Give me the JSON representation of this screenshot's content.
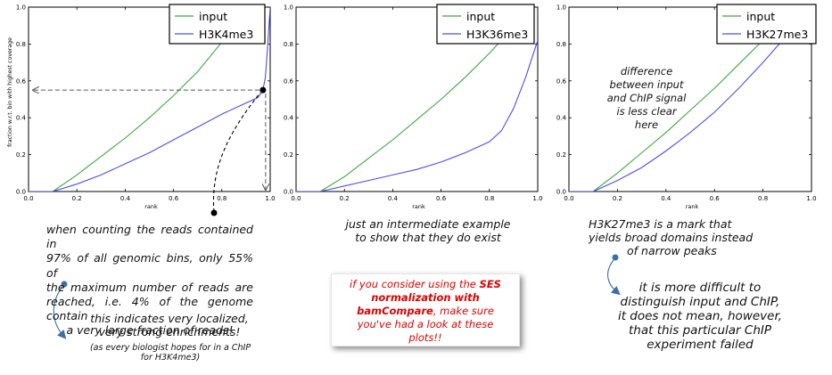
{
  "chart_data": [
    {
      "type": "line",
      "title": "",
      "xlabel": "rank",
      "ylabel": "fraction w.r.t. bin with highest coverage",
      "xlim": [
        0.0,
        1.0
      ],
      "ylim": [
        0.0,
        1.0
      ],
      "xticks": [
        "0.0",
        "0.2",
        "0.4",
        "0.6",
        "0.8",
        "1.0"
      ],
      "yticks": [
        "0.0",
        "0.2",
        "0.4",
        "0.6",
        "0.8",
        "1.0"
      ],
      "legend_position": "top-right",
      "grid": false,
      "series": [
        {
          "name": "input",
          "color": "#3ea83e",
          "x": [
            0.0,
            0.1,
            0.2,
            0.3,
            0.4,
            0.5,
            0.6,
            0.7,
            0.8,
            0.85
          ],
          "y": [
            0.0,
            0.0,
            0.09,
            0.19,
            0.29,
            0.4,
            0.52,
            0.65,
            0.81,
            0.9
          ]
        },
        {
          "name": "H3K4me3",
          "color": "#4d4df0",
          "x": [
            0.0,
            0.1,
            0.2,
            0.3,
            0.4,
            0.5,
            0.6,
            0.7,
            0.8,
            0.9,
            0.95,
            0.97,
            0.98,
            0.99,
            1.0
          ],
          "y": [
            0.0,
            0.0,
            0.04,
            0.09,
            0.15,
            0.21,
            0.28,
            0.35,
            0.42,
            0.48,
            0.51,
            0.55,
            0.62,
            0.8,
            1.0
          ]
        }
      ],
      "reference_point": {
        "x": 0.97,
        "y": 0.55
      }
    },
    {
      "type": "line",
      "title": "",
      "xlabel": "rank",
      "ylabel": "",
      "xlim": [
        0.0,
        1.0
      ],
      "ylim": [
        0.0,
        1.0
      ],
      "xticks": [
        "0.0",
        "0.2",
        "0.4",
        "0.6",
        "0.8",
        "1.0"
      ],
      "yticks": [
        "0.0",
        "0.2",
        "0.4",
        "0.6",
        "0.8",
        "1.0"
      ],
      "legend_position": "top-right",
      "grid": false,
      "series": [
        {
          "name": "input",
          "color": "#3ea83e",
          "x": [
            0.0,
            0.1,
            0.2,
            0.3,
            0.4,
            0.5,
            0.6,
            0.7,
            0.8,
            0.9,
            0.95
          ],
          "y": [
            0.0,
            0.0,
            0.08,
            0.18,
            0.28,
            0.39,
            0.5,
            0.62,
            0.75,
            0.89,
            0.97
          ]
        },
        {
          "name": "H3K36me3",
          "color": "#4d4df0",
          "x": [
            0.0,
            0.1,
            0.2,
            0.3,
            0.4,
            0.5,
            0.6,
            0.7,
            0.8,
            0.85,
            0.9,
            0.95,
            1.0
          ],
          "y": [
            0.0,
            0.0,
            0.03,
            0.06,
            0.09,
            0.12,
            0.16,
            0.21,
            0.27,
            0.33,
            0.45,
            0.62,
            0.82
          ]
        }
      ]
    },
    {
      "type": "line",
      "title": "",
      "xlabel": "rank",
      "ylabel": "",
      "xlim": [
        0.0,
        1.0
      ],
      "ylim": [
        0.0,
        1.0
      ],
      "xticks": [
        "0.0",
        "0.2",
        "0.4",
        "0.6",
        "0.8",
        "1.0"
      ],
      "yticks": [
        "0.0",
        "0.2",
        "0.4",
        "0.6",
        "0.8",
        "1.0"
      ],
      "legend_position": "top-right",
      "grid": false,
      "series": [
        {
          "name": "input",
          "color": "#3ea83e",
          "x": [
            0.0,
            0.1,
            0.2,
            0.3,
            0.4,
            0.5,
            0.6,
            0.7,
            0.8,
            0.88
          ],
          "y": [
            0.0,
            0.0,
            0.1,
            0.21,
            0.32,
            0.44,
            0.56,
            0.69,
            0.82,
            0.93
          ]
        },
        {
          "name": "H3K27me3",
          "color": "#4d4df0",
          "x": [
            0.0,
            0.1,
            0.2,
            0.3,
            0.4,
            0.5,
            0.6,
            0.7,
            0.8,
            0.9
          ],
          "y": [
            0.0,
            0.0,
            0.06,
            0.13,
            0.22,
            0.32,
            0.43,
            0.56,
            0.7,
            0.85
          ]
        }
      ]
    }
  ],
  "annotations": {
    "panel1_lines": [
      "when counting the reads contained in",
      "97% of all genomic bins, only 55% of",
      "the maximum number of reads are",
      "reached, i.e. 4% of the genome contain",
      "a very large fraction of reads!"
    ],
    "panel1_conclusion_lines": [
      "this indicates very localized,",
      "very strong enrichments!"
    ],
    "panel1_note_lines": [
      "(as every biologist hopes for in a ChIP",
      "for H3K4me3)"
    ],
    "panel2_lines": [
      "just an intermediate example",
      "to show that they do exist"
    ],
    "panel3_inside_lines": [
      "difference",
      "between input",
      "and ChIP signal",
      "is less clear",
      "here"
    ],
    "panel3_lines": [
      "H3K27me3 is a mark that",
      "yields broad domains instead",
      "of narrow peaks"
    ],
    "panel3_conclusion_lines": [
      "it is more difficult to",
      "distinguish input and ChIP,",
      "it does not mean, however,",
      "that this particular ChIP",
      "experiment failed"
    ],
    "callout": {
      "part1": "if you consider using the ",
      "bold1": "SES",
      "bold2": "normalization with",
      "bold3": "bamCompare",
      "part2": ", make sure",
      "line3": "you've had a look at these",
      "line4": "plots!!"
    }
  },
  "colors": {
    "input": "#3ea83e",
    "chip": "#4d4df0",
    "bullet": "#3d6fa6",
    "callout_text": "#e00000",
    "axis": "#000000"
  }
}
